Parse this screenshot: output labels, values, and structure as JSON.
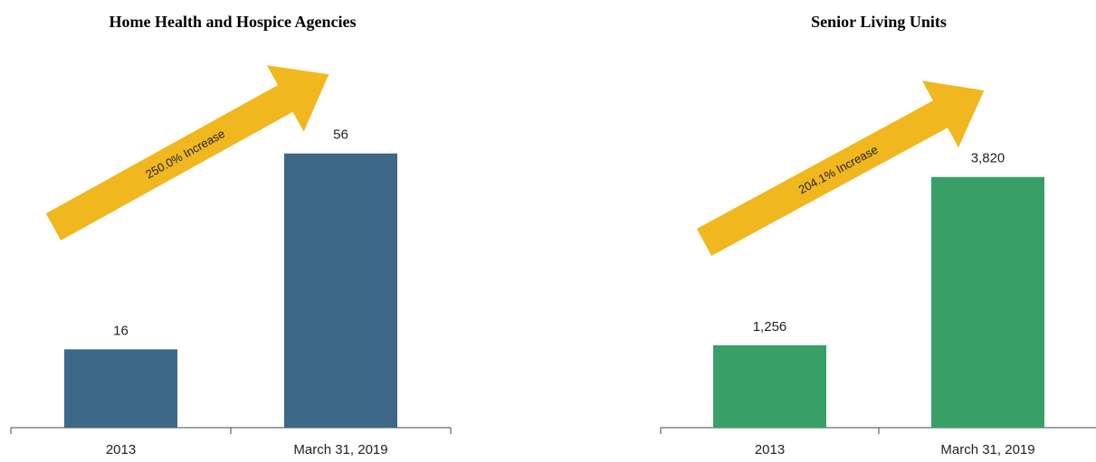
{
  "chart_data": [
    {
      "type": "bar",
      "title": "Home Health and Hospice Agencies",
      "categories": [
        "2013",
        "March 31, 2019"
      ],
      "values": [
        16,
        56
      ],
      "color": "#3e6887",
      "ylim": [
        0,
        65
      ],
      "annotation": "250.0% Increase",
      "annotation_color": "#f0b71f"
    },
    {
      "type": "bar",
      "title": "Senior Living Units",
      "categories": [
        "2013",
        "March 31, 2019"
      ],
      "values": [
        1256,
        3820
      ],
      "value_labels": [
        "1,256",
        "3,820"
      ],
      "color": "#38a067",
      "ylim": [
        0,
        4850
      ],
      "annotation": "204.1% Increase",
      "annotation_color": "#f0b71f"
    }
  ]
}
